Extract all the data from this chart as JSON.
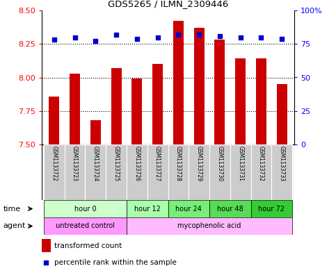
{
  "title": "GDS5265 / ILMN_2309446",
  "samples": [
    "GSM1133722",
    "GSM1133723",
    "GSM1133724",
    "GSM1133725",
    "GSM1133726",
    "GSM1133727",
    "GSM1133728",
    "GSM1133729",
    "GSM1133730",
    "GSM1133731",
    "GSM1133732",
    "GSM1133733"
  ],
  "transformed_count": [
    7.86,
    8.03,
    7.68,
    8.07,
    7.99,
    8.1,
    8.42,
    8.37,
    8.28,
    8.14,
    8.14,
    7.95
  ],
  "percentile_rank": [
    78,
    80,
    77,
    82,
    79,
    80,
    82,
    82,
    81,
    80,
    80,
    79
  ],
  "ylim_left": [
    7.5,
    8.5
  ],
  "ylim_right": [
    0,
    100
  ],
  "yticks_left": [
    7.5,
    7.75,
    8.0,
    8.25,
    8.5
  ],
  "yticks_right": [
    0,
    25,
    50,
    75,
    100
  ],
  "bar_color": "#cc0000",
  "dot_color": "#0000cc",
  "bar_width": 0.5,
  "dotted_line_values": [
    7.75,
    8.0,
    8.25
  ],
  "time_groups": [
    {
      "label": "hour 0",
      "start": 0,
      "end": 3,
      "color": "#ccffcc"
    },
    {
      "label": "hour 12",
      "start": 4,
      "end": 5,
      "color": "#aaffaa"
    },
    {
      "label": "hour 24",
      "start": 6,
      "end": 7,
      "color": "#77ee77"
    },
    {
      "label": "hour 48",
      "start": 8,
      "end": 9,
      "color": "#55dd55"
    },
    {
      "label": "hour 72",
      "start": 10,
      "end": 11,
      "color": "#33cc33"
    }
  ],
  "agent_groups": [
    {
      "label": "untreated control",
      "start": 0,
      "end": 3,
      "color": "#ff99ff"
    },
    {
      "label": "mycophenolic acid",
      "start": 4,
      "end": 11,
      "color": "#ffbbff"
    }
  ],
  "legend_bar_label": "transformed count",
  "legend_dot_label": "percentile rank within the sample",
  "xlabel_time": "time",
  "xlabel_agent": "agent",
  "bg_plot": "#ffffff",
  "bg_sample": "#cccccc",
  "left_axis_color": "red",
  "right_axis_color": "blue"
}
